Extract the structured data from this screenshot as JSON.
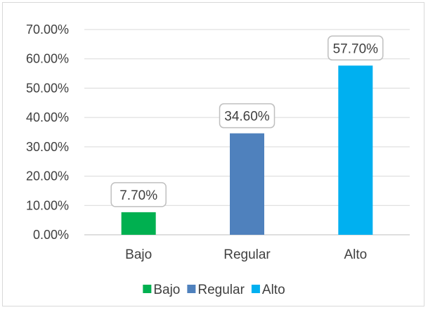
{
  "chart_data": {
    "type": "bar",
    "categories": [
      "Bajo",
      "Regular",
      "Alto"
    ],
    "values": [
      7.7,
      34.6,
      57.7
    ],
    "data_labels": [
      "7.70%",
      "34.60%",
      "57.70%"
    ],
    "colors": [
      "#00b050",
      "#4f81bd",
      "#00b0f0"
    ],
    "ylim": [
      0,
      70
    ],
    "yticks": [
      0,
      10,
      20,
      30,
      40,
      50,
      60,
      70
    ],
    "ytick_labels": [
      "0.00%",
      "10.00%",
      "20.00%",
      "30.00%",
      "40.00%",
      "50.00%",
      "60.00%",
      "70.00%"
    ],
    "grid": true,
    "legend": {
      "position": "bottom",
      "entries": [
        "Bajo",
        "Regular",
        "Alto"
      ]
    },
    "title": "",
    "xlabel": "",
    "ylabel": ""
  }
}
